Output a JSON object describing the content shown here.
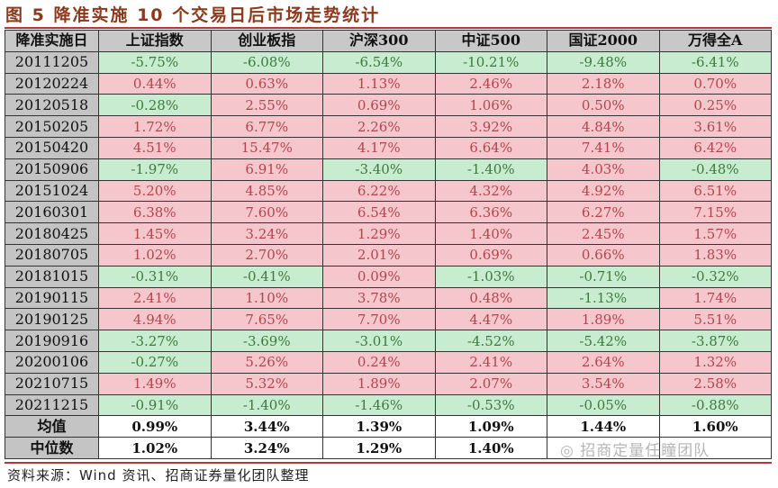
{
  "title": "图 5  降准实施 10 个交易日后市场走势统计",
  "table": {
    "headers": [
      "降准实施日",
      "上证指数",
      "创业板指",
      "沪深300",
      "中证500",
      "国证2000",
      "万得全A"
    ],
    "rows": [
      [
        "20111205",
        "-5.75%",
        "-6.08%",
        "-6.54%",
        "-10.21%",
        "-9.48%",
        "-6.41%"
      ],
      [
        "20120224",
        "0.44%",
        "0.63%",
        "1.13%",
        "2.46%",
        "2.18%",
        "0.70%"
      ],
      [
        "20120518",
        "-0.28%",
        "2.55%",
        "0.69%",
        "1.06%",
        "0.50%",
        "0.25%"
      ],
      [
        "20150205",
        "1.72%",
        "6.77%",
        "2.26%",
        "3.92%",
        "4.84%",
        "3.61%"
      ],
      [
        "20150420",
        "4.51%",
        "15.47%",
        "4.17%",
        "6.64%",
        "7.41%",
        "6.42%"
      ],
      [
        "20150906",
        "-1.97%",
        "6.91%",
        "-3.40%",
        "-1.40%",
        "4.03%",
        "-0.48%"
      ],
      [
        "20151024",
        "5.20%",
        "4.85%",
        "6.22%",
        "4.32%",
        "4.92%",
        "6.51%"
      ],
      [
        "20160301",
        "6.38%",
        "7.60%",
        "6.54%",
        "6.36%",
        "6.27%",
        "7.15%"
      ],
      [
        "20180425",
        "1.45%",
        "3.24%",
        "1.29%",
        "1.40%",
        "2.45%",
        "1.57%"
      ],
      [
        "20180705",
        "1.02%",
        "2.70%",
        "2.01%",
        "0.69%",
        "0.66%",
        "1.83%"
      ],
      [
        "20181015",
        "-0.31%",
        "-0.41%",
        "0.09%",
        "-1.03%",
        "-0.71%",
        "-0.32%"
      ],
      [
        "20190115",
        "2.41%",
        "1.10%",
        "3.78%",
        "0.48%",
        "-1.13%",
        "1.74%"
      ],
      [
        "20190125",
        "4.94%",
        "7.65%",
        "7.70%",
        "4.47%",
        "1.89%",
        "5.51%"
      ],
      [
        "20190916",
        "-3.27%",
        "-3.69%",
        "-3.01%",
        "-4.52%",
        "-5.42%",
        "-3.87%"
      ],
      [
        "20200106",
        "-0.27%",
        "5.26%",
        "0.24%",
        "2.41%",
        "2.64%",
        "1.32%"
      ],
      [
        "20210715",
        "1.49%",
        "5.32%",
        "1.89%",
        "2.07%",
        "3.54%",
        "2.58%"
      ],
      [
        "20211215",
        "-0.91%",
        "-1.40%",
        "-1.46%",
        "-0.53%",
        "-0.05%",
        "-0.88%"
      ]
    ],
    "stats": [
      [
        "均值",
        "0.99%",
        "3.44%",
        "1.39%",
        "1.09%",
        "1.44%",
        "1.60%"
      ],
      [
        "中位数",
        "1.02%",
        "3.24%",
        "1.29%",
        "1.40%",
        "",
        ""
      ]
    ]
  },
  "colors": {
    "positive_bg": "#f5c6cc",
    "negative_bg": "#c8ecd0",
    "positive_text": "#b0464c",
    "negative_text": "#3c7a3c",
    "accent_line": "#b23b30"
  },
  "source": "资料来源：Wind 资讯、招商证券量化团队整理",
  "watermark": "招商定量任瞳团队"
}
